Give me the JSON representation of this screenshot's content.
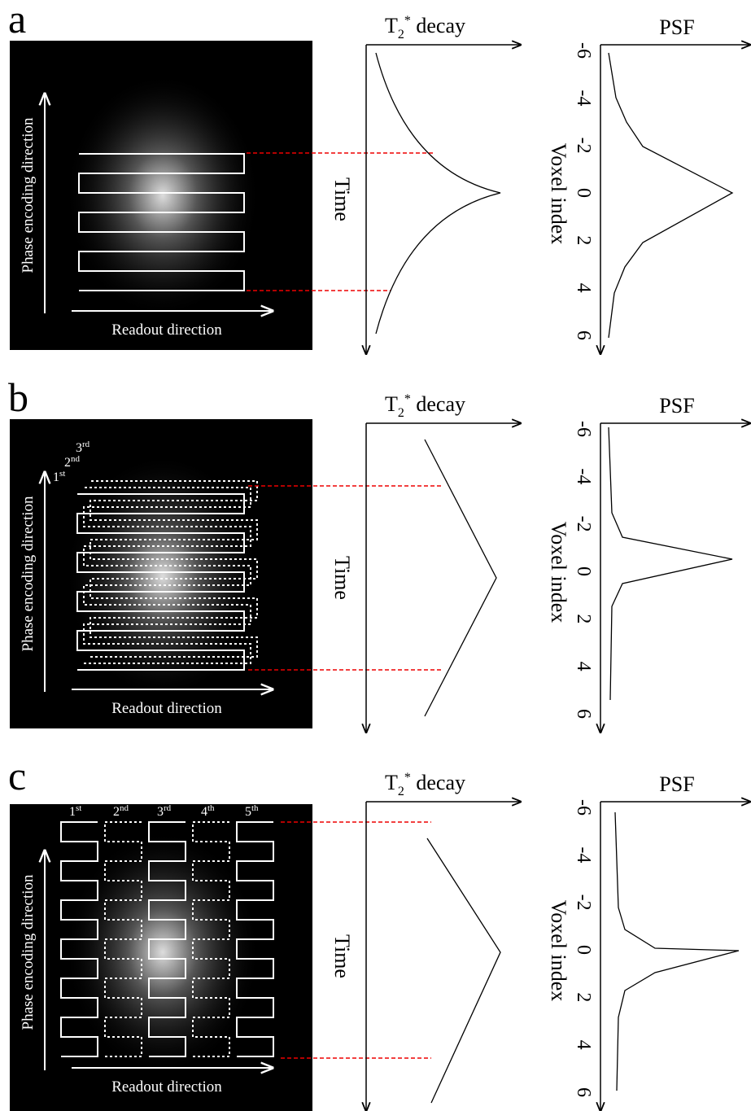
{
  "panels": [
    {
      "label": "a",
      "kspace": {
        "y_axis": "Phase encoding direction",
        "x_axis": "Readout direction",
        "shots": []
      },
      "t2": {
        "base": "T",
        "sub": "2",
        "sup": "*",
        "rest": " decay",
        "axis": "Time"
      },
      "psf": {
        "title": "PSF",
        "axis": "Voxel index",
        "ticks": [
          -6,
          -4,
          -2,
          0,
          2,
          4,
          6
        ]
      }
    },
    {
      "label": "b",
      "kspace": {
        "y_axis": "Phase encoding direction",
        "x_axis": "Readout direction",
        "shots": [
          {
            "num": "3",
            "suffix": "rd"
          },
          {
            "num": "2",
            "suffix": "nd"
          },
          {
            "num": "1",
            "suffix": "st"
          }
        ]
      },
      "t2": {
        "base": "T",
        "sub": "2",
        "sup": "*",
        "rest": " decay",
        "axis": "Time"
      },
      "psf": {
        "title": "PSF",
        "axis": "Voxel index",
        "ticks": [
          -6,
          -4,
          -2,
          0,
          2,
          4,
          6
        ]
      }
    },
    {
      "label": "c",
      "kspace": {
        "y_axis": "Phase encoding direction",
        "x_axis": "Readout direction",
        "shots": [
          {
            "num": "1",
            "suffix": "st"
          },
          {
            "num": "2",
            "suffix": "nd"
          },
          {
            "num": "3",
            "suffix": "rd"
          },
          {
            "num": "4",
            "suffix": "th"
          },
          {
            "num": "5",
            "suffix": "th"
          }
        ]
      },
      "t2": {
        "base": "T",
        "sub": "2",
        "sup": "*",
        "rest": " decay",
        "axis": "Time"
      },
      "psf": {
        "title": "PSF",
        "axis": "Voxel index",
        "ticks": [
          -6,
          -4,
          -2,
          0,
          2,
          4,
          6
        ]
      }
    }
  ]
}
